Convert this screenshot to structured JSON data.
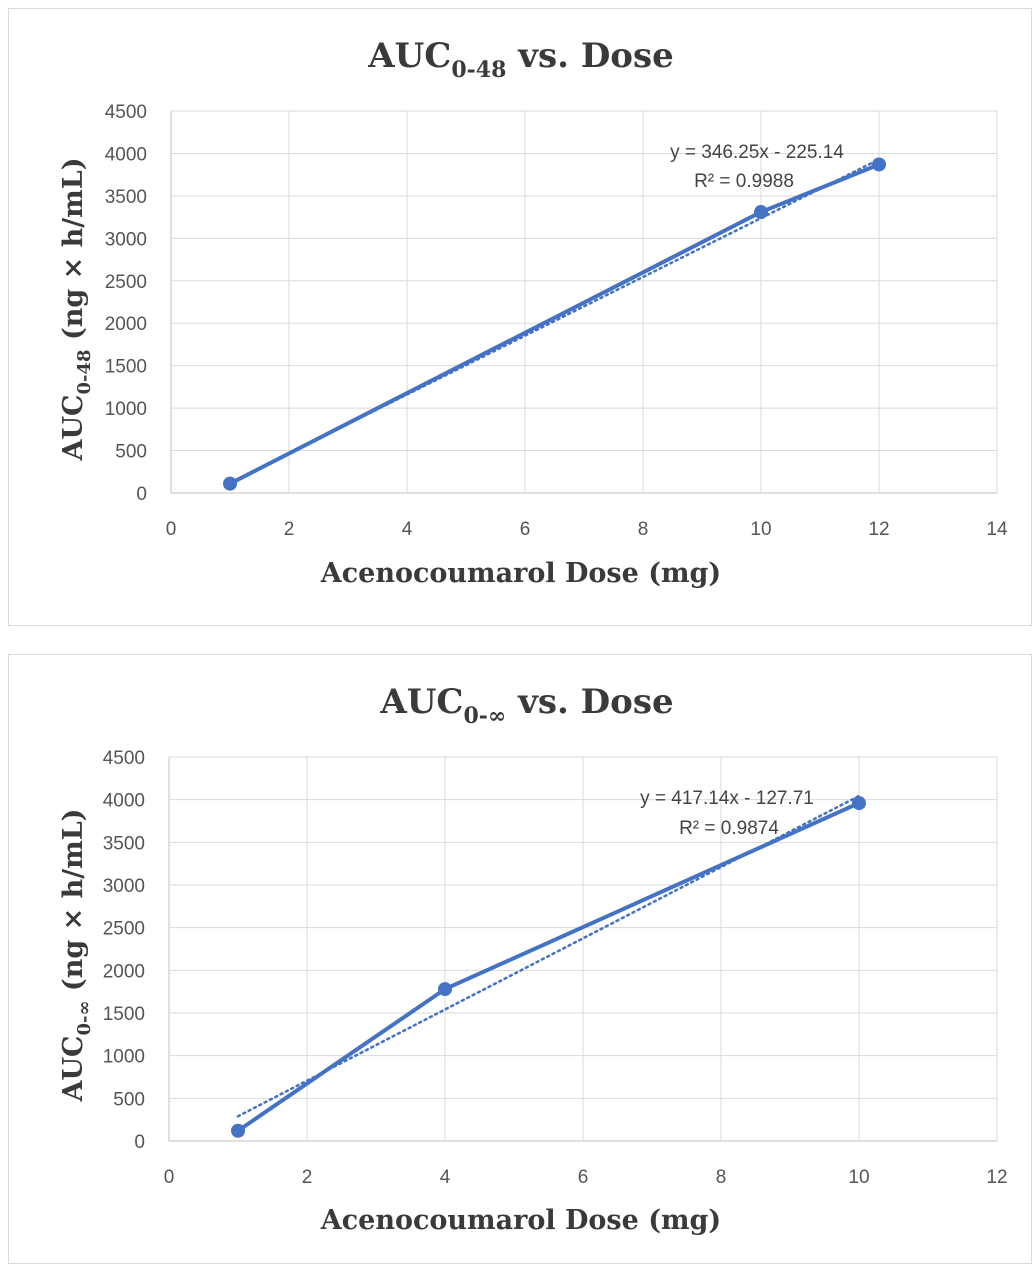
{
  "charts": [
    {
      "title_main": "AUC",
      "title_sub": "0-48",
      "title_rest": " vs. Dose",
      "ylabel_main": "AUC",
      "ylabel_sub": "0-48",
      "ylabel_rest": " (ng × h/mL)",
      "xlabel": "Acenocoumarol Dose (mg)",
      "equation": "y = 346.25x - 225.14",
      "r2": "R² = 0.9988"
    },
    {
      "title_main": "AUC",
      "title_sub": "0-∞",
      "title_rest": " vs. Dose",
      "ylabel_main": "AUC",
      "ylabel_sub": "0-∞",
      "ylabel_rest": " (ng × h/mL)",
      "xlabel": "Acenocoumarol Dose (mg)",
      "equation": "y = 417.14x - 127.71",
      "r2": "R² = 0.9874"
    }
  ],
  "chart_data": [
    {
      "type": "line",
      "title": "AUC0-48 vs. Dose",
      "xlabel": "Acenocoumarol Dose (mg)",
      "ylabel": "AUC0-48 (ng × h/mL)",
      "xlim": [
        0,
        14
      ],
      "ylim": [
        0,
        4500
      ],
      "xticks": [
        0,
        2,
        4,
        6,
        8,
        10,
        12,
        14
      ],
      "yticks": [
        0,
        500,
        1000,
        1500,
        2000,
        2500,
        3000,
        3500,
        4000,
        4500
      ],
      "grid": true,
      "series": [
        {
          "x": [
            1,
            10,
            12
          ],
          "y": [
            110,
            3310,
            3870
          ]
        }
      ],
      "trendline": {
        "type": "linear",
        "slope": 346.25,
        "intercept": -225.14,
        "r2": 0.9988
      },
      "color": "#4472c4"
    },
    {
      "type": "line",
      "title": "AUC0-∞ vs. Dose",
      "xlabel": "Acenocoumarol Dose (mg)",
      "ylabel": "AUC0-∞ (ng × h/mL)",
      "xlim": [
        0,
        12
      ],
      "ylim": [
        0,
        4500
      ],
      "xticks": [
        0,
        2,
        4,
        6,
        8,
        10,
        12
      ],
      "yticks": [
        0,
        500,
        1000,
        1500,
        2000,
        2500,
        3000,
        3500,
        4000,
        4500
      ],
      "grid": true,
      "series": [
        {
          "x": [
            1,
            4,
            10
          ],
          "y": [
            120,
            1780,
            3960
          ]
        }
      ],
      "trendline": {
        "type": "linear",
        "slope": 417.14,
        "intercept": -127.71,
        "r2": 0.9874
      },
      "color": "#4472c4"
    }
  ]
}
